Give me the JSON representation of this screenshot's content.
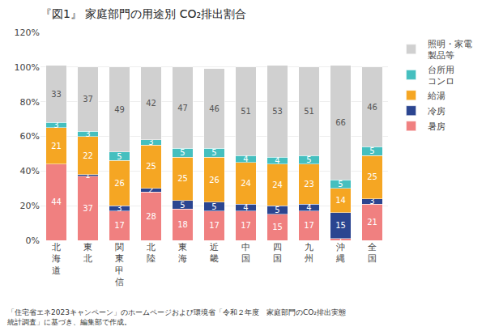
{
  "chart_data": {
    "type": "bar",
    "stacked": true,
    "title": "『図1』 家庭部門の用途別 CO₂排出割合",
    "categories": [
      "北\n海\n道",
      "東\n北",
      "関\n東\n甲\n信",
      "北\n陸",
      "東\n海",
      "近\n畿",
      "中\n国",
      "四\n国",
      "九\n州",
      "沖\n縄",
      "全\n国"
    ],
    "series": [
      {
        "name": "暑房",
        "color": "#F08080",
        "values": [
          44,
          37,
          17,
          28,
          18,
          17,
          17,
          15,
          17,
          1,
          21
        ]
      },
      {
        "name": "冷房",
        "color": "#2B4590",
        "values": [
          0,
          1,
          3,
          2,
          5,
          5,
          4,
          5,
          4,
          15,
          3
        ]
      },
      {
        "name": "給湯",
        "color": "#F5A623",
        "values": [
          21,
          22,
          26,
          25,
          25,
          26,
          24,
          24,
          23,
          14,
          25
        ]
      },
      {
        "name": "台所用\nコンロ",
        "color": "#45BFBF",
        "values": [
          3,
          3,
          5,
          3,
          5,
          5,
          4,
          4,
          5,
          5,
          5
        ]
      },
      {
        "name": "照明・家電\n製品等",
        "color": "#D0D0D0",
        "values": [
          33,
          37,
          49,
          42,
          47,
          46,
          51,
          53,
          51,
          66,
          46
        ]
      }
    ],
    "ylim": [
      0,
      120
    ],
    "yticks": [
      {
        "value": 0,
        "label": "0%"
      },
      {
        "value": 20,
        "label": "20%"
      },
      {
        "value": 40,
        "label": "40%"
      },
      {
        "value": 60,
        "label": "60%"
      },
      {
        "value": 80,
        "label": "80%"
      },
      {
        "value": 100,
        "label": "100%"
      },
      {
        "value": 120,
        "label": "120%"
      }
    ],
    "grid": true,
    "legend": "right",
    "data_labels": true,
    "annotations": [
      "「住宅省エネ2023キャンペーン」のホームページおよび環境省「令和２年度　家庭部門のCO₂排出実態",
      "統計調査」に基づき、編集部で作成。"
    ]
  }
}
